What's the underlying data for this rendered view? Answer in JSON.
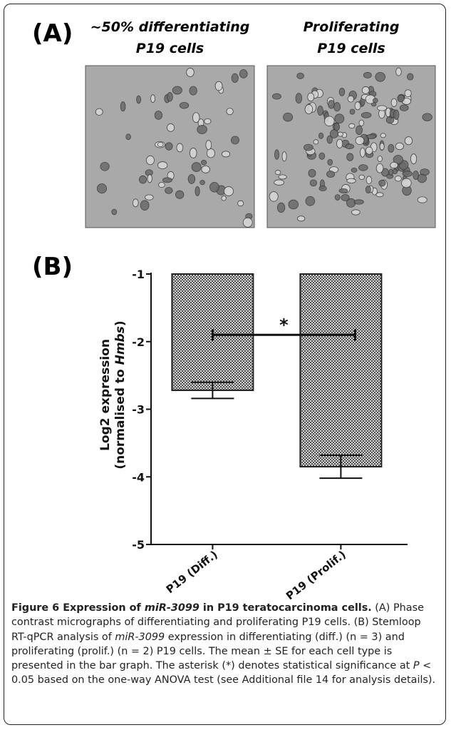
{
  "panel_a": {
    "label": "(A)",
    "images": [
      {
        "caption_lines": [
          "~50% differentiating",
          "P19 cells"
        ]
      },
      {
        "caption_lines": [
          "Proliferating",
          "P19 cells"
        ]
      }
    ]
  },
  "chart_data": {
    "type": "bar",
    "panel_label": "(B)",
    "ylabel_line1": "Log2 expression",
    "ylabel_line2": [
      "(normalised to ",
      "Hmbs",
      ")"
    ],
    "categories": [
      "P19 (Diff.)",
      "P19 (Prolif.)"
    ],
    "values": [
      -2.72,
      -3.85
    ],
    "errors": [
      0.12,
      0.17
    ],
    "color": "#222222",
    "ylim": [
      -5,
      -1
    ],
    "yticks": [
      -5,
      -4,
      -3,
      -2,
      -1
    ],
    "annotations": [
      {
        "text": "*",
        "y": -1.9
      }
    ]
  },
  "caption": {
    "parts": [
      "Figure 6 Expression of ",
      "miR-3099",
      " in P19 teratocarcinoma cells.",
      " (A) Phase contrast micrographs of differentiating and proliferating P19 cells. (B) Stemloop RT-qPCR analysis of ",
      "miR-3099",
      " expression in differentiating (diff.) (n = 3) and proliferating (prolif.) (n = 2) P19 cells. The mean ± SE for each cell type is presented in the bar graph. The asterisk (*) denotes statistical significance at ",
      "P",
      " < 0.05 based on the one-way ANOVA test (see Additional file 14 for analysis details)."
    ]
  }
}
